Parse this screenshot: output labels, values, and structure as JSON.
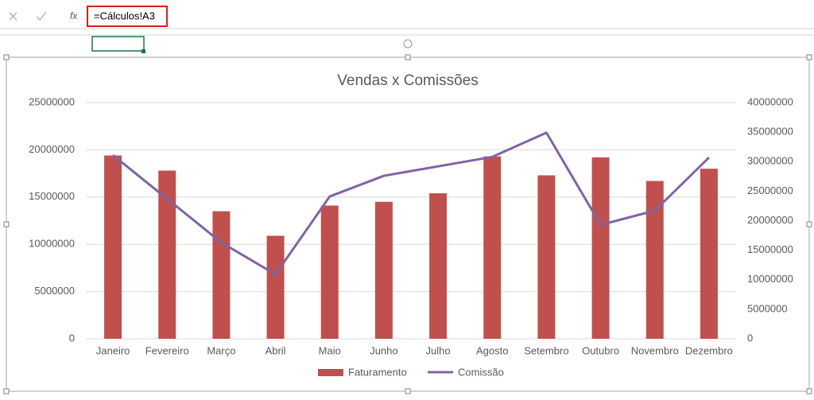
{
  "formula_bar": {
    "function_label": "fx",
    "formula": "=Cálculos!A3"
  },
  "chart_data": {
    "type": "combo",
    "title": "Vendas x Comissões",
    "categories": [
      "Janeiro",
      "Fevereiro",
      "Março",
      "Abril",
      "Maio",
      "Junho",
      "Julho",
      "Agosto",
      "Setembro",
      "Outubro",
      "Novembro",
      "Dezembro"
    ],
    "series": [
      {
        "name": "Faturamento",
        "type": "bar",
        "color": "#c0504d",
        "values": [
          19400000,
          17800000,
          13500000,
          10900000,
          14100000,
          14500000,
          15400000,
          19300000,
          17300000,
          19200000,
          16700000,
          18000000
        ]
      },
      {
        "name": "Comissão",
        "type": "line",
        "axis": "y2",
        "color": "#8064a2",
        "values": [
          31100000,
          23700000,
          16300000,
          10900000,
          24100000,
          27600000,
          29200000,
          30800000,
          34900000,
          19300000,
          21700000,
          30700000
        ]
      }
    ],
    "ylim": [
      0,
      25000000
    ],
    "yticks": [
      0,
      5000000,
      10000000,
      15000000,
      20000000,
      25000000
    ],
    "y2lim": [
      0,
      40000000
    ],
    "y2ticks": [
      0,
      5000000,
      10000000,
      15000000,
      20000000,
      25000000,
      30000000,
      35000000,
      40000000
    ],
    "grid": true,
    "legend": "bottom"
  }
}
